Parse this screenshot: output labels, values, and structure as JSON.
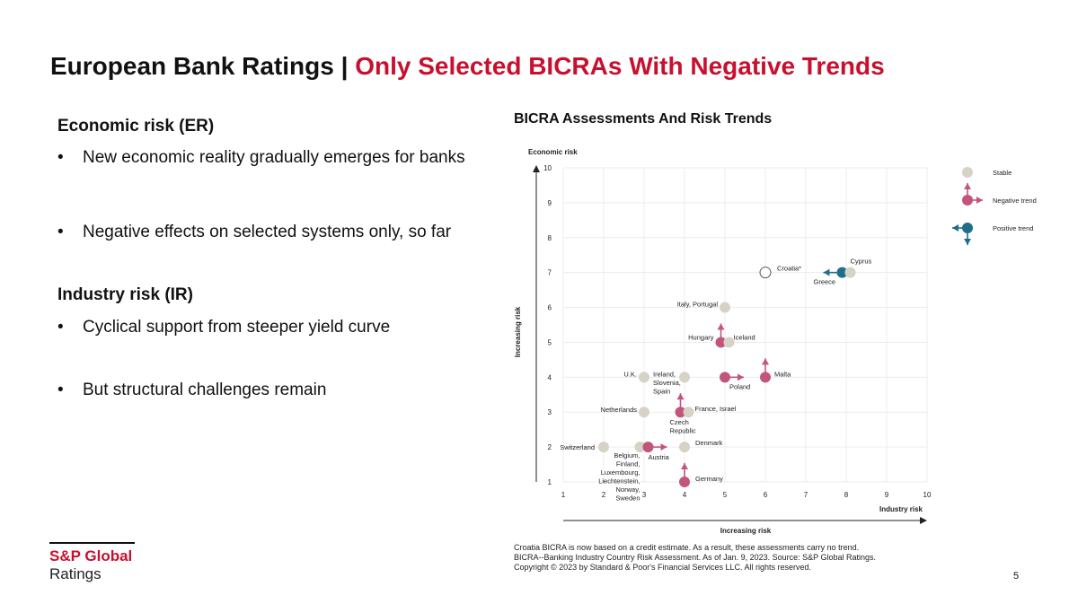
{
  "title": {
    "main": "European Bank Ratings | ",
    "highlight": "Only Selected BICRAs With Negative Trends"
  },
  "left": {
    "sections": [
      {
        "heading": "Economic risk (ER)",
        "bullets": [
          "New economic reality gradually emerges for banks",
          "Negative effects on selected systems only, so far"
        ]
      },
      {
        "heading": "Industry risk (IR)",
        "bullets": [
          "Cyclical support from steeper yield curve",
          "But structural challenges remain"
        ]
      }
    ],
    "bullet_char": "•"
  },
  "chart_title": "BICRA Assessments And Risk Trends",
  "chart_data": {
    "type": "scatter",
    "title": "BICRA Assessments And Risk Trends",
    "ylabel": "Economic risk",
    "xlabel": "Industry risk",
    "y_axis_note": "Increasing risk",
    "x_axis_note": "Increasing risk",
    "xlim": [
      1,
      10
    ],
    "ylim": [
      1,
      10
    ],
    "xticks": [
      1,
      2,
      3,
      4,
      5,
      6,
      7,
      8,
      9,
      10
    ],
    "yticks": [
      1,
      2,
      3,
      4,
      5,
      6,
      7,
      8,
      9,
      10
    ],
    "legend": [
      {
        "label": "Stable",
        "kind": "stable"
      },
      {
        "label": "Negative trend",
        "kind": "negative"
      },
      {
        "label": "Positive trend",
        "kind": "positive"
      }
    ],
    "points": [
      {
        "label": "Switzerland",
        "x": 2,
        "y": 2,
        "kind": "stable"
      },
      {
        "label": "Belgium,\nFinland,\nLuxembourg,\nLiechtenstein,\nNorway,\nSweden",
        "x": 2.9,
        "y": 2,
        "kind": "stable"
      },
      {
        "label": "Austria",
        "x": 3.1,
        "y": 2,
        "kind": "negative",
        "trend": "industry"
      },
      {
        "label": "Denmark",
        "x": 4,
        "y": 2,
        "kind": "stable"
      },
      {
        "label": "Germany",
        "x": 4,
        "y": 1,
        "kind": "negative",
        "trend": "economic"
      },
      {
        "label": "Netherlands",
        "x": 3,
        "y": 3,
        "kind": "stable"
      },
      {
        "label": "Czech\nRepublic",
        "x": 3.9,
        "y": 3,
        "kind": "negative",
        "trend": "economic"
      },
      {
        "label": "France, Israel",
        "x": 4.1,
        "y": 3,
        "kind": "stable"
      },
      {
        "label": "U.K.",
        "x": 3,
        "y": 4,
        "kind": "stable"
      },
      {
        "label": "Ireland,\nSlovenia,\nSpain",
        "x": 4,
        "y": 4,
        "kind": "stable"
      },
      {
        "label": "Poland",
        "x": 5,
        "y": 4,
        "kind": "negative",
        "trend": "industry"
      },
      {
        "label": "Malta",
        "x": 6,
        "y": 4,
        "kind": "negative",
        "trend": "economic"
      },
      {
        "label": "Hungary",
        "x": 4.9,
        "y": 5,
        "kind": "negative",
        "trend": "economic"
      },
      {
        "label": "Iceland",
        "x": 5.1,
        "y": 5,
        "kind": "stable"
      },
      {
        "label": "Italy, Portugal",
        "x": 5,
        "y": 6,
        "kind": "stable"
      },
      {
        "label": "Croatia*",
        "x": 6,
        "y": 7,
        "kind": "estimate"
      },
      {
        "label": "Greece",
        "x": 7.9,
        "y": 7,
        "kind": "positive",
        "trend": "industry"
      },
      {
        "label": "Cyprus",
        "x": 8.1,
        "y": 7,
        "kind": "stable"
      }
    ]
  },
  "colors": {
    "stable": "#d7d2c6",
    "negative": "#c2557a",
    "positive": "#1f6e8c",
    "accent": "#c8102e",
    "axis": "#222222",
    "grid": "#ececec"
  },
  "footnotes": [
    "Croatia BICRA is now based on a credit estimate. As a result, these assessments carry no trend.",
    "BICRA--Banking Industry Country Risk Assessment. As of Jan. 9, 2023. Source: S&P Global Ratings.",
    "Copyright © 2023 by Standard & Poor's Financial Services LLC. All rights reserved."
  ],
  "logo": {
    "line1": "S&P Global",
    "line2": "Ratings"
  },
  "page_number": "5"
}
